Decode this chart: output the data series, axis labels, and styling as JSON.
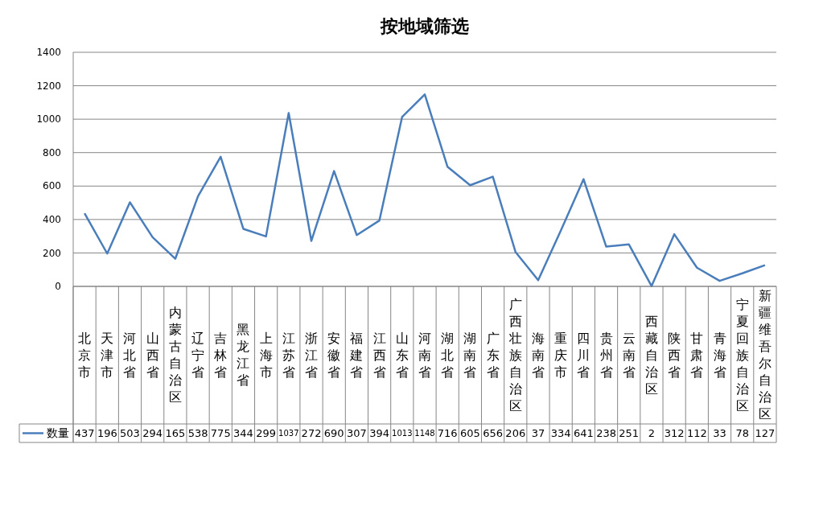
{
  "chart_data": {
    "type": "line",
    "title": "按地域筛选",
    "categories": [
      "北京市",
      "天津市",
      "河北省",
      "山西省",
      "内蒙古自治区",
      "辽宁省",
      "吉林省",
      "黑龙江省",
      "上海市",
      "江苏省",
      "浙江省",
      "安徽省",
      "福建省",
      "江西省",
      "山东省",
      "河南省",
      "湖北省",
      "湖南省",
      "广东省",
      "广西壮族自治区",
      "海南省",
      "重庆市",
      "四川省",
      "贵州省",
      "云南省",
      "西藏自治区",
      "陕西省",
      "甘肃省",
      "青海省",
      "宁夏回族自治区",
      "新疆维吾尔自治区"
    ],
    "series": [
      {
        "name": "数量",
        "color": "#4a7ebb",
        "values": [
          437,
          196,
          503,
          294,
          165,
          538,
          775,
          344,
          299,
          1037,
          272,
          690,
          307,
          394,
          1013,
          1148,
          716,
          605,
          656,
          206,
          37,
          334,
          641,
          238,
          251,
          2,
          312,
          112,
          33,
          78,
          127
        ]
      }
    ],
    "data_labels": true,
    "ylim": [
      0,
      1400
    ],
    "yticks": [
      0,
      200,
      400,
      600,
      800,
      1000,
      1200,
      1400
    ],
    "grid": "y",
    "legend": "bottom",
    "marker": "none",
    "line_style": "solid"
  }
}
